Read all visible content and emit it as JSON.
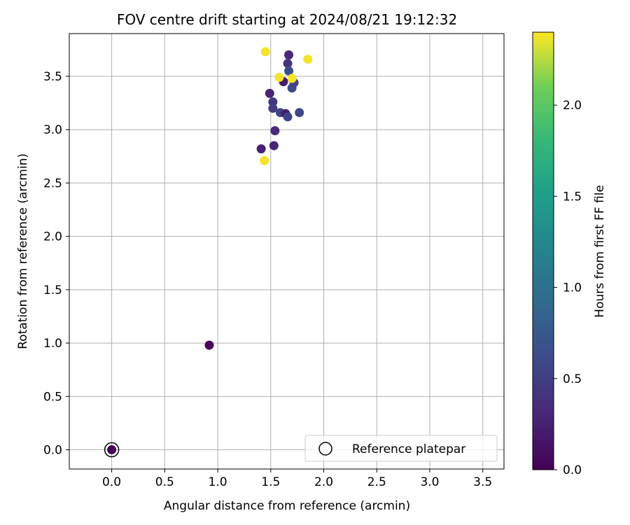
{
  "chart_data": {
    "type": "scatter",
    "title": "FOV centre drift starting at 2024/08/21 19:12:32",
    "xlabel": "Angular distance from reference (arcmin)",
    "ylabel": "Rotation from reference (arcmin)",
    "xlim": [
      -0.4,
      3.7
    ],
    "ylim": [
      -0.18,
      3.9
    ],
    "xticks": [
      "0.0",
      "0.5",
      "1.0",
      "1.5",
      "2.0",
      "2.5",
      "3.0",
      "3.5"
    ],
    "xtick_values": [
      0.0,
      0.5,
      1.0,
      1.5,
      2.0,
      2.5,
      3.0,
      3.5
    ],
    "yticks": [
      "0.0",
      "0.5",
      "1.0",
      "1.5",
      "2.0",
      "2.5",
      "3.0",
      "3.5"
    ],
    "ytick_values": [
      0.0,
      0.5,
      1.0,
      1.5,
      2.0,
      2.5,
      3.0,
      3.5
    ],
    "grid": true,
    "colormap": "viridis",
    "colorbar": {
      "label": "Hours from first FF file",
      "range": [
        0.0,
        2.4
      ],
      "ticks": [
        "0.0",
        "0.5",
        "1.0",
        "1.5",
        "2.0"
      ],
      "tick_values": [
        0.0,
        0.5,
        1.0,
        1.5,
        2.0
      ]
    },
    "legend": {
      "placement": "lower right",
      "label": "Reference platepar"
    },
    "reference_point": {
      "x": 0.0,
      "y": 0.0
    },
    "points": [
      {
        "x": 0.0,
        "y": 0.0,
        "c": 0.0
      },
      {
        "x": 0.92,
        "y": 0.98,
        "c": 0.05
      },
      {
        "x": 1.41,
        "y": 2.82,
        "c": 0.25
      },
      {
        "x": 1.53,
        "y": 2.85,
        "c": 0.28
      },
      {
        "x": 1.54,
        "y": 2.99,
        "c": 0.3
      },
      {
        "x": 1.49,
        "y": 3.34,
        "c": 0.27
      },
      {
        "x": 1.52,
        "y": 3.26,
        "c": 0.45
      },
      {
        "x": 1.52,
        "y": 3.2,
        "c": 0.5
      },
      {
        "x": 1.59,
        "y": 3.16,
        "c": 0.55
      },
      {
        "x": 1.64,
        "y": 3.15,
        "c": 0.22
      },
      {
        "x": 1.66,
        "y": 3.12,
        "c": 0.55
      },
      {
        "x": 1.77,
        "y": 3.16,
        "c": 0.58
      },
      {
        "x": 1.62,
        "y": 3.45,
        "c": 0.22
      },
      {
        "x": 1.7,
        "y": 3.39,
        "c": 0.62
      },
      {
        "x": 1.72,
        "y": 3.44,
        "c": 0.55
      },
      {
        "x": 1.66,
        "y": 3.62,
        "c": 0.42
      },
      {
        "x": 1.67,
        "y": 3.55,
        "c": 0.65
      },
      {
        "x": 1.67,
        "y": 3.7,
        "c": 0.3
      },
      {
        "x": 1.45,
        "y": 3.73,
        "c": 2.38
      },
      {
        "x": 1.58,
        "y": 3.49,
        "c": 2.38
      },
      {
        "x": 1.7,
        "y": 3.48,
        "c": 2.38
      },
      {
        "x": 1.85,
        "y": 3.66,
        "c": 2.38
      },
      {
        "x": 1.44,
        "y": 2.71,
        "c": 2.38
      }
    ]
  }
}
